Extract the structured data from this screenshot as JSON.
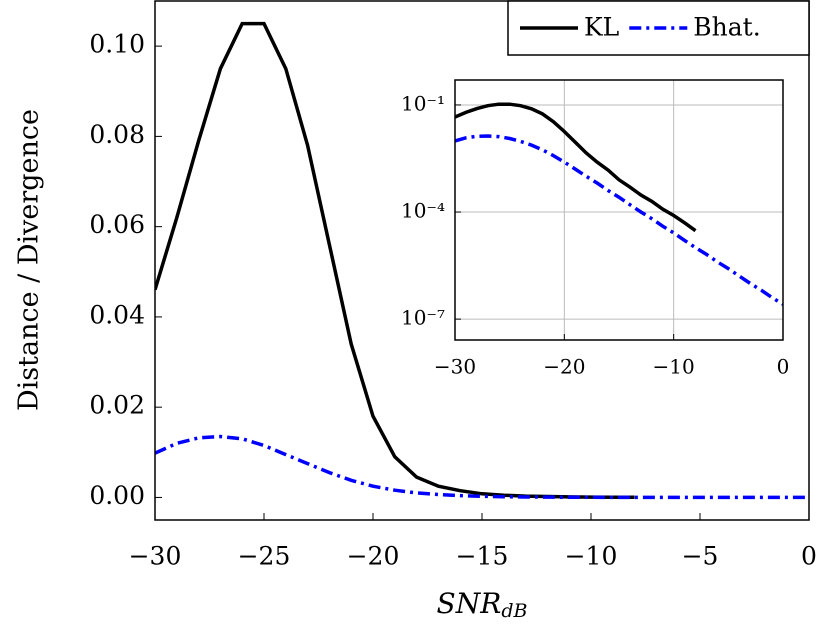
{
  "chart_data": [
    {
      "type": "line",
      "xlabel": "SNR",
      "xlabel_sub": "dB",
      "ylabel": "Distance / Divergence",
      "x": [
        -30,
        -29,
        -28,
        -27,
        -26,
        -25,
        -24,
        -23,
        -22,
        -21,
        -20,
        -19,
        -18,
        -17,
        -16,
        -15,
        -14,
        -13,
        -12,
        -11,
        -10,
        -9,
        -8,
        -7,
        -6,
        -5,
        -4,
        -3,
        -2,
        -1,
        0
      ],
      "series": [
        {
          "name": "KL",
          "color": "#000000",
          "style": "solid",
          "values": [
            0.046,
            0.062,
            0.079,
            0.095,
            0.105,
            0.105,
            0.095,
            0.078,
            0.056,
            0.034,
            0.018,
            0.009,
            0.0045,
            0.0025,
            0.0015,
            0.0008,
            0.0005,
            0.0003,
            0.0002,
            0.00012,
            8e-05,
            5e-05,
            3e-05,
            null,
            null,
            null,
            null,
            null,
            null,
            null,
            null
          ]
        },
        {
          "name": "Bhat.",
          "color": "#0000ff",
          "style": "dashdot",
          "values": [
            0.0098,
            0.012,
            0.0132,
            0.0135,
            0.013,
            0.0115,
            0.0095,
            0.0075,
            0.0055,
            0.0038,
            0.0025,
            0.0016,
            0.001,
            0.00065,
            0.0004,
            0.00026,
            0.00016,
            0.0001,
            6.5e-05,
            4e-05,
            2.6e-05,
            1.6e-05,
            1e-05,
            6.5e-06,
            4e-06,
            2.6e-06,
            1.6e-06,
            1e-06,
            6.5e-07,
            4e-07,
            2.6e-07
          ]
        }
      ],
      "xlim": [
        -30,
        0
      ],
      "xticks": [
        {
          "value": -30,
          "label": "−30"
        },
        {
          "value": -25,
          "label": "−25"
        },
        {
          "value": -20,
          "label": "−20"
        },
        {
          "value": -15,
          "label": "−15"
        },
        {
          "value": -10,
          "label": "−10"
        },
        {
          "value": -5,
          "label": "−5"
        },
        0
      ],
      "ylim": [
        -0.005,
        0.11
      ],
      "yticks": [
        {
          "value": 0,
          "label": "0.00"
        },
        {
          "value": 0.02,
          "label": "0.02"
        },
        {
          "value": 0.04,
          "label": "0.04"
        },
        {
          "value": 0.06,
          "label": "0.06"
        },
        {
          "value": 0.08,
          "label": "0.08"
        },
        {
          "value": 0.1,
          "label": "0.10"
        }
      ],
      "grid": false,
      "legend": "top-right"
    },
    {
      "type": "line",
      "x": [
        -30,
        -29,
        -28,
        -27,
        -26,
        -25,
        -24,
        -23,
        -22,
        -21,
        -20,
        -19,
        -18,
        -17,
        -16,
        -15,
        -14,
        -13,
        -12,
        -11,
        -10,
        -9,
        -8,
        -7,
        -6,
        -5,
        -4,
        -3,
        -2,
        -1,
        0
      ],
      "series": [
        {
          "color": "#000000",
          "style": "solid",
          "values": [
            0.046,
            0.062,
            0.079,
            0.095,
            0.105,
            0.105,
            0.095,
            0.078,
            0.056,
            0.034,
            0.018,
            0.009,
            0.0045,
            0.0025,
            0.0015,
            0.0008,
            0.0005,
            0.0003,
            0.0002,
            0.00012,
            8e-05,
            5e-05,
            3e-05,
            null,
            null,
            null,
            null,
            null,
            null,
            null,
            null
          ]
        },
        {
          "color": "#0000ff",
          "style": "dashdot",
          "values": [
            0.0098,
            0.012,
            0.0132,
            0.0135,
            0.013,
            0.0115,
            0.0095,
            0.0075,
            0.0055,
            0.0038,
            0.0025,
            0.0016,
            0.001,
            0.00065,
            0.0004,
            0.00026,
            0.00016,
            0.0001,
            6.5e-05,
            4e-05,
            2.6e-05,
            1.6e-05,
            1e-05,
            6.5e-06,
            4e-06,
            2.6e-06,
            1.6e-06,
            1e-06,
            6.5e-07,
            4e-07,
            2.6e-07
          ]
        }
      ],
      "xlim": [
        -30,
        0
      ],
      "xticks": [
        {
          "value": -30,
          "label": "−30"
        },
        {
          "value": -20,
          "label": "−20"
        },
        {
          "value": -10,
          "label": "−10"
        },
        0
      ],
      "ylim": [
        2.6e-08,
        0.5
      ],
      "yticks": [
        {
          "value": 0.1,
          "label": "10⁻¹"
        },
        {
          "value": 0.0001,
          "label": "10⁻⁴"
        },
        {
          "value": 1e-07,
          "label": "10⁻⁷"
        }
      ],
      "log_y": true,
      "grid": true
    }
  ]
}
